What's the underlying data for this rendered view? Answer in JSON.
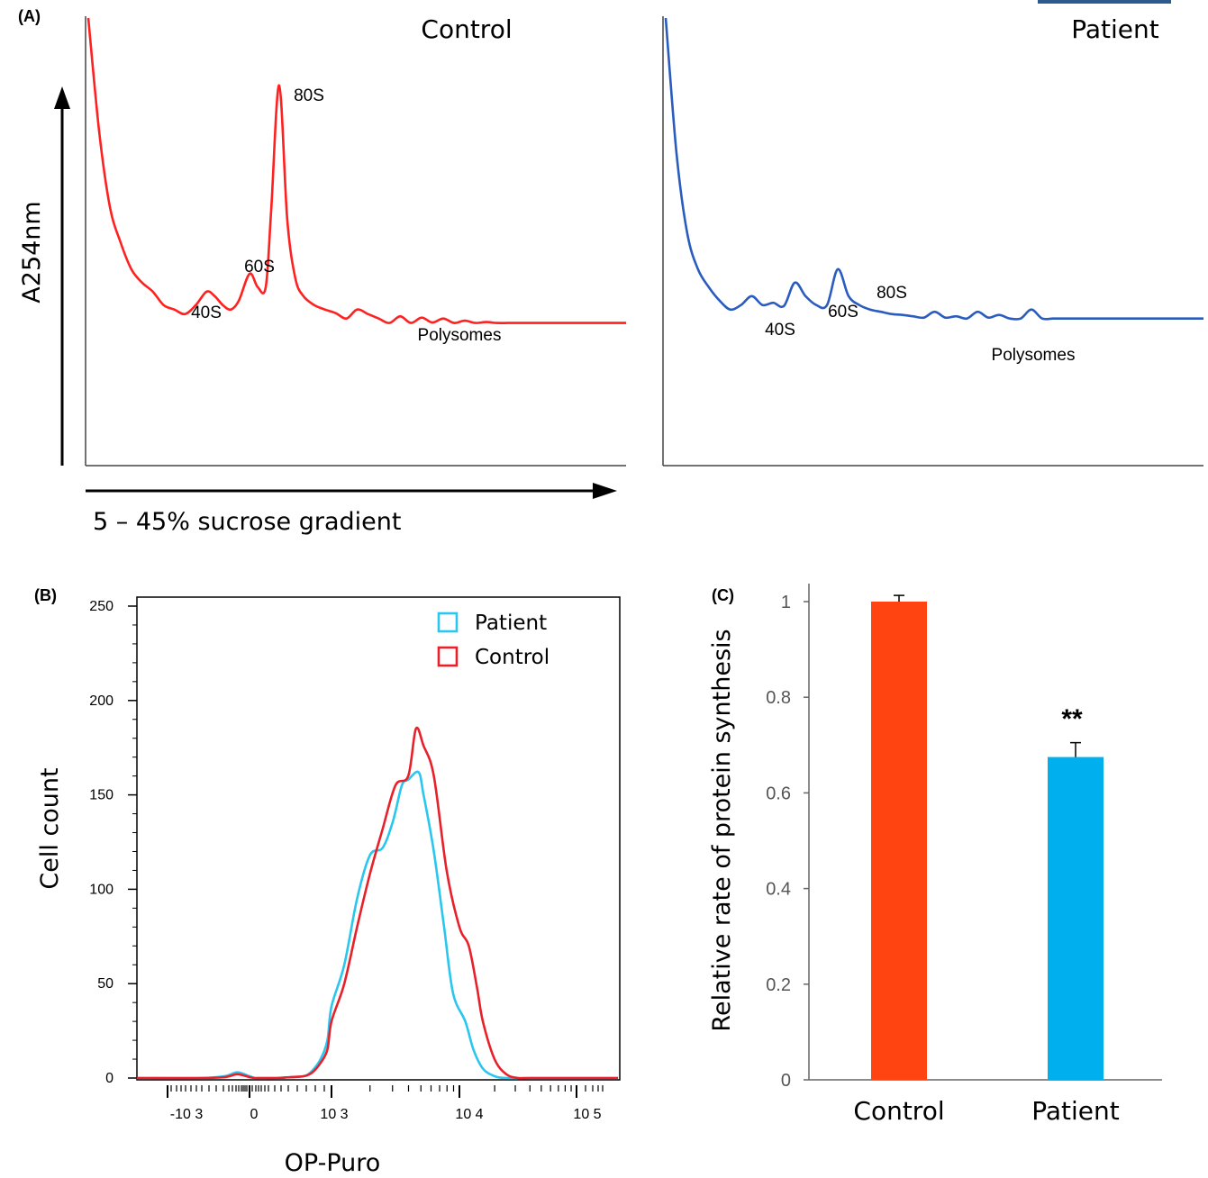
{
  "chart_data": [
    {
      "panel": "(A)",
      "type": "line",
      "title": "Control",
      "ylabel": "A254nm",
      "xlabel": "5 – 45% sucrose gradient",
      "color": "#ff2020",
      "peaks": [
        "40S",
        "60S",
        "80S",
        "Polysomes"
      ],
      "x": [
        0,
        2,
        4,
        6,
        8,
        10,
        12,
        14,
        16,
        18,
        20,
        22,
        23.5,
        25,
        26.5,
        28,
        30,
        31.5,
        33,
        34,
        35.5,
        37,
        38.5,
        40,
        42,
        44,
        46,
        48,
        50,
        52,
        54,
        56,
        58,
        60,
        62,
        64,
        66,
        68,
        70,
        72,
        74,
        76,
        78,
        80,
        82,
        84,
        86,
        88,
        90,
        92,
        94,
        96,
        98,
        100
      ],
      "values": [
        100,
        75,
        58,
        50,
        44,
        41,
        39,
        36,
        35,
        34,
        36,
        39,
        38,
        36,
        35,
        37,
        43,
        40,
        40,
        57,
        85,
        55,
        42,
        38,
        36,
        35,
        34.2,
        33,
        35,
        34,
        33,
        32,
        33.5,
        32,
        33.2,
        32.1,
        33,
        32,
        32.5,
        32,
        32.2,
        32,
        32,
        32,
        32,
        32,
        32,
        32,
        32,
        32,
        32,
        32,
        32,
        32
      ]
    },
    {
      "panel": "(A)",
      "type": "line",
      "title": "Patient",
      "color": "#2a5cc0",
      "peaks": [
        "40S",
        "60S",
        "80S",
        "Polysomes"
      ],
      "x": [
        0,
        2,
        4,
        6,
        8,
        10,
        12,
        14,
        16,
        18,
        20,
        22,
        24,
        26,
        28,
        30,
        32,
        34,
        36,
        38,
        40,
        42,
        44,
        46,
        48,
        50,
        52,
        54,
        56,
        58,
        60,
        62,
        64,
        66,
        68,
        70,
        72,
        74,
        76,
        78,
        80,
        82,
        84,
        86,
        88,
        90,
        92,
        94,
        96,
        98,
        100
      ],
      "values": [
        100,
        70,
        52,
        44,
        40,
        37,
        35,
        36,
        38,
        36,
        36.5,
        35.8,
        41,
        38,
        36,
        36,
        44,
        38,
        36,
        35,
        34.5,
        34,
        33.8,
        33.5,
        33.2,
        34.5,
        33.2,
        33.5,
        33,
        34.5,
        33.2,
        33.8,
        33,
        33,
        35,
        33,
        33,
        33,
        33,
        33,
        33,
        33,
        33,
        33,
        33,
        33,
        33,
        33,
        33,
        33,
        33
      ]
    },
    {
      "panel": "(B)",
      "type": "line",
      "ylabel": "Cell count",
      "xlabel": "OP-Puro",
      "ylim": [
        0,
        250
      ],
      "yticks": [
        "0",
        "50",
        "100",
        "150",
        "200",
        "250"
      ],
      "xtick_labels": [
        "-10 3",
        "0",
        "10 3",
        "10 4",
        "10 5"
      ],
      "series": [
        {
          "name": "Patient",
          "color": "#29c6f0",
          "x": [
            -1.3,
            -0.6,
            -0.3,
            -0.15,
            0,
            0.2,
            0.5,
            1.0,
            1.5,
            2.0,
            2.3,
            2.6,
            2.85,
            3.0,
            3.1,
            3.2,
            3.3,
            3.4,
            3.48,
            3.55,
            3.6,
            3.68,
            3.72,
            3.8,
            3.88,
            3.95,
            4.05,
            4.12,
            4.2,
            4.3,
            4.4,
            4.6,
            4.9
          ],
          "values": [
            0,
            0,
            1,
            3,
            1,
            0,
            0,
            0,
            0.5,
            1,
            4,
            10,
            20,
            38,
            60,
            95,
            118,
            122,
            136,
            155,
            158,
            162,
            150,
            120,
            80,
            45,
            30,
            15,
            5,
            1,
            0,
            0,
            0
          ]
        },
        {
          "name": "Control",
          "color": "#e8202a",
          "x": [
            -1.3,
            -0.6,
            -0.3,
            -0.15,
            0,
            0.2,
            0.5,
            1.0,
            1.5,
            2.0,
            2.3,
            2.6,
            2.85,
            3.0,
            3.1,
            3.2,
            3.3,
            3.4,
            3.5,
            3.6,
            3.66,
            3.72,
            3.8,
            3.9,
            4.0,
            4.08,
            4.15,
            4.2,
            4.3,
            4.4,
            4.5,
            4.6,
            4.9
          ],
          "values": [
            0,
            0,
            0.5,
            2,
            0.5,
            0,
            0,
            0,
            0.5,
            1,
            3,
            8,
            15,
            30,
            50,
            80,
            108,
            132,
            155,
            160,
            185,
            176,
            160,
            110,
            80,
            70,
            48,
            30,
            10,
            2,
            0,
            0,
            0
          ]
        }
      ]
    },
    {
      "panel": "(C)",
      "type": "bar",
      "categories": [
        "Control",
        "Patient"
      ],
      "values": [
        1.0,
        0.675
      ],
      "errors": [
        0.013,
        0.03
      ],
      "colors": [
        "#ff4412",
        "#00b0ee"
      ],
      "ylabel": "Relative rate of protein synthesis",
      "ylim": [
        0,
        1.0
      ],
      "yticks": [
        "0",
        "0.2",
        "0.4",
        "0.6",
        "0.8",
        "1"
      ],
      "annotation": "**"
    }
  ]
}
